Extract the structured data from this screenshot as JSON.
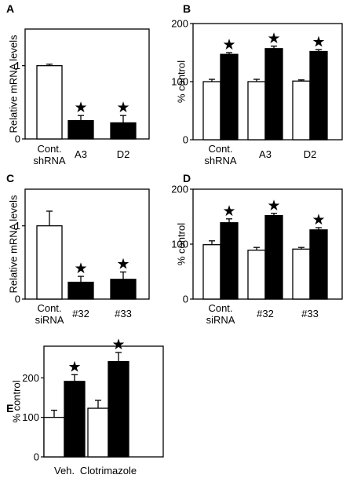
{
  "chart_data": [
    {
      "panel": "A",
      "type": "bar",
      "ylabel": "Relative mRNA levels",
      "ylim": [
        0,
        1.5
      ],
      "yticks": [
        "0",
        "1"
      ],
      "categories": [
        "Cont. shRNA",
        "A3",
        "D2"
      ],
      "values": [
        1.0,
        0.25,
        0.22
      ],
      "errors": [
        0.02,
        0.07,
        0.1
      ],
      "significant": [
        false,
        true,
        true
      ],
      "marker": "★",
      "fills": [
        "white",
        "black",
        "black"
      ]
    },
    {
      "panel": "B",
      "type": "bar",
      "ylabel": "% control",
      "ylim": [
        0,
        200
      ],
      "yticks": [
        "0",
        "100",
        "200"
      ],
      "categories": [
        "Cont. shRNA",
        "A3",
        "D2"
      ],
      "series": [
        {
          "fill": "white",
          "values": [
            100,
            100,
            101
          ],
          "errors": [
            4,
            4,
            2
          ],
          "significant": [
            false,
            false,
            false
          ]
        },
        {
          "fill": "black",
          "values": [
            147,
            157,
            152
          ],
          "errors": [
            3,
            4,
            3
          ],
          "significant": [
            true,
            true,
            true
          ]
        }
      ],
      "marker": "★"
    },
    {
      "panel": "C",
      "type": "bar",
      "ylabel": "Relative mRNA levels",
      "ylim": [
        0,
        1.5
      ],
      "yticks": [
        "0",
        "1"
      ],
      "categories": [
        "Cont. siRNA",
        "#32",
        "#33"
      ],
      "values": [
        1.0,
        0.23,
        0.27
      ],
      "errors": [
        0.2,
        0.08,
        0.1
      ],
      "significant": [
        false,
        true,
        true
      ],
      "marker": "★",
      "fills": [
        "white",
        "black",
        "black"
      ]
    },
    {
      "panel": "D",
      "type": "bar",
      "ylabel": "% control",
      "ylim": [
        0,
        200
      ],
      "yticks": [
        "0",
        "100",
        "200"
      ],
      "categories": [
        "Cont. siRNA",
        "#32",
        "#33"
      ],
      "series": [
        {
          "fill": "white",
          "values": [
            99,
            89,
            91
          ],
          "errors": [
            7,
            5,
            3
          ],
          "significant": [
            false,
            false,
            false
          ]
        },
        {
          "fill": "black",
          "values": [
            139,
            152,
            126
          ],
          "errors": [
            7,
            4,
            4
          ],
          "significant": [
            true,
            true,
            true
          ]
        }
      ],
      "marker": "★"
    },
    {
      "panel": "E",
      "type": "bar",
      "ylabel": "% control",
      "ylim": [
        0,
        280
      ],
      "yticks": [
        "0",
        "100",
        "200"
      ],
      "categories": [
        "Veh.",
        "Clotrimazole"
      ],
      "series": [
        {
          "fill": "white",
          "values": [
            100,
            123
          ],
          "errors": [
            18,
            20
          ],
          "significant": [
            false,
            false
          ]
        },
        {
          "fill": "black",
          "values": [
            191,
            241
          ],
          "errors": [
            17,
            23
          ],
          "significant": [
            true,
            true
          ]
        }
      ],
      "marker": "★"
    }
  ]
}
